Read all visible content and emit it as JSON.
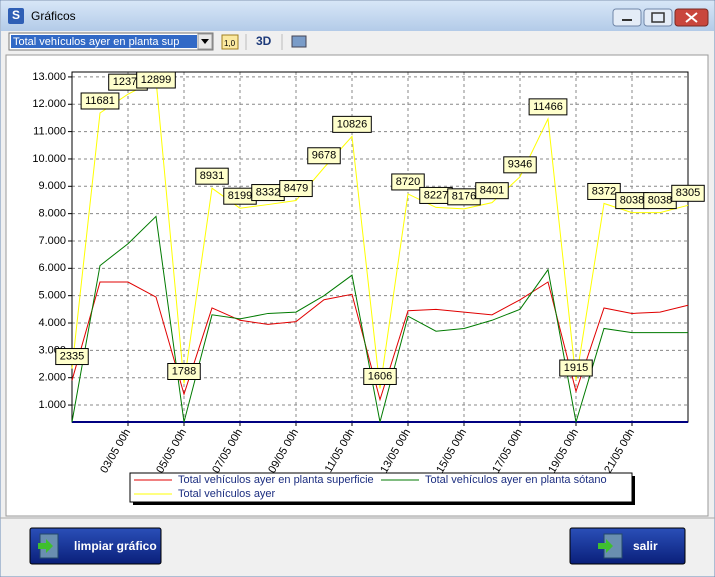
{
  "window": {
    "title": "Gráficos",
    "selector": "Total vehículos ayer en planta sup",
    "toolbar_decimals": "1,0",
    "toolbar_3d": "3D"
  },
  "chart_data": {
    "type": "line",
    "categories": [
      null,
      null,
      "03/05 00h",
      null,
      "05/05 00h",
      null,
      "07/05 00h",
      null,
      "09/05 00h",
      null,
      "11/05 00h",
      null,
      "13/05 00h",
      null,
      "15/05 00h",
      null,
      "17/05 00h",
      null,
      "19/05 00h",
      null,
      "21/05 00h",
      null,
      null
    ],
    "series": [
      {
        "name": "Total vehículos ayer en planta superficie",
        "color": "#e00000",
        "values": [
          1900,
          5500,
          5500,
          4950,
          1400,
          4550,
          4100,
          3950,
          4050,
          4850,
          5050,
          1200,
          4450,
          4500,
          4400,
          4300,
          4850,
          5500,
          1500,
          4550,
          4350,
          4400,
          4650
        ]
      },
      {
        "name": "Total vehículos ayer en planta sótano",
        "color": "#007a00",
        "values": [
          380,
          6100,
          6900,
          7900,
          380,
          4300,
          4150,
          4350,
          4400,
          5000,
          5750,
          380,
          4250,
          3700,
          3800,
          4100,
          4500,
          5950,
          380,
          3800,
          3650,
          3650,
          3650
        ]
      },
      {
        "name": "Total vehículos ayer",
        "color": "#ffff00",
        "show_value_labels": true,
        "values": [
          2335,
          11681,
          12370,
          12899,
          1788,
          8931,
          8199,
          8332,
          8479,
          9678,
          10826,
          1606,
          8720,
          8227,
          8176,
          8401,
          9346,
          11466,
          1915,
          8372,
          8038,
          8038,
          8305
        ]
      }
    ],
    "ylim": [
      380,
      13180
    ],
    "yticks": [
      {
        "value": 1000,
        "label": "1.000"
      },
      {
        "value": 2000,
        "label": "2.000"
      },
      {
        "value": 3000,
        "label": "3.000"
      },
      {
        "value": 4000,
        "label": "4.000"
      },
      {
        "value": 5000,
        "label": "5.000"
      },
      {
        "value": 6000,
        "label": "6.000"
      },
      {
        "value": 7000,
        "label": "7.000"
      },
      {
        "value": 8000,
        "label": "8.000"
      },
      {
        "value": 9000,
        "label": "9.000"
      },
      {
        "value": 10000,
        "label": "10.000"
      },
      {
        "value": 11000,
        "label": "11.000"
      },
      {
        "value": 12000,
        "label": "12.000"
      },
      {
        "value": 13000,
        "label": "13.000"
      }
    ],
    "grid": true
  },
  "buttons": {
    "clear": "limpiar gráfico",
    "exit": "salir"
  }
}
